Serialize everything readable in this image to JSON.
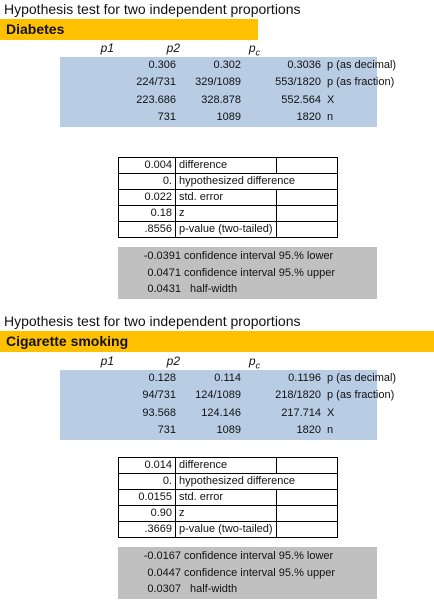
{
  "sections": [
    {
      "title": "Hypothesis test for two independent proportions",
      "name": "Diabetes",
      "col_headers": [
        "p1",
        "p2",
        "p",
        "c"
      ],
      "rows": [
        {
          "p1": "0.306",
          "p2": "0.302",
          "pc": "0.3036",
          "label": "p (as decimal)"
        },
        {
          "p1": "224/731",
          "p2": "329/1089",
          "pc": "553/1820",
          "label": "p (as fraction)"
        },
        {
          "p1": "223.686",
          "p2": "328.878",
          "pc": "552.564",
          "label": "X"
        },
        {
          "p1": "731",
          "p2": "1089",
          "pc": "1820",
          "label": "n"
        }
      ],
      "stats": [
        {
          "value": "0.004",
          "label": "difference"
        },
        {
          "value": "0.",
          "label": "hypothesized difference"
        },
        {
          "value": "0.022",
          "label": "std. error"
        },
        {
          "value": "0.18",
          "label": "z"
        },
        {
          "value": ".8556",
          "label": "p-value (two-tailed)"
        }
      ],
      "ci": [
        {
          "value": "-0.0391",
          "label": "confidence interval 95.% lower"
        },
        {
          "value": "0.0471",
          "label": "confidence interval 95.% upper"
        },
        {
          "value": "0.0431",
          "label": "half-width"
        }
      ]
    },
    {
      "title": "Hypothesis test for two independent proportions",
      "name": "Cigarette smoking",
      "col_headers": [
        "p1",
        "p2",
        "p",
        "c"
      ],
      "rows": [
        {
          "p1": "0.128",
          "p2": "0.114",
          "pc": "0.1196",
          "label": "p (as decimal)"
        },
        {
          "p1": "94/731",
          "p2": "124/1089",
          "pc": "218/1820",
          "label": "p (as fraction)"
        },
        {
          "p1": "93.568",
          "p2": "124.146",
          "pc": "217.714",
          "label": "X"
        },
        {
          "p1": "731",
          "p2": "1089",
          "pc": "1820",
          "label": "n"
        }
      ],
      "stats": [
        {
          "value": "0.014",
          "label": "difference"
        },
        {
          "value": "0.",
          "label": "hypothesized difference"
        },
        {
          "value": "0.0155",
          "label": "std. error"
        },
        {
          "value": "0.90",
          "label": "z"
        },
        {
          "value": ".3669",
          "label": "p-value (two-tailed)"
        }
      ],
      "ci": [
        {
          "value": "-0.0167",
          "label": "confidence interval 95.% lower"
        },
        {
          "value": "0.0447",
          "label": "confidence interval 95.% upper"
        },
        {
          "value": "0.0307",
          "label": "half-width"
        }
      ]
    }
  ],
  "colors": {
    "section_bar": "#ffc000",
    "input_block": "#b8cce4",
    "ci_block": "#c0c0c0"
  }
}
